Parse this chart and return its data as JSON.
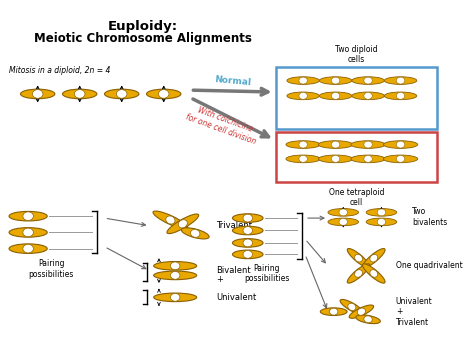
{
  "title_line1": "Euploidy:",
  "title_line2": "Meiotic Chromosome Alignments",
  "bg_color": "#ffffff",
  "chrom_color": "#E8A800",
  "chrom_outline": "#8B6000",
  "blue_box_color": "#5599CC",
  "red_box_color": "#CC4444",
  "normal_text_color": "#55AACC",
  "colchicine_text_color": "#CC3333",
  "mitosis_label": "Mitosis in a diploid, 2n = 4",
  "two_diploid_label": "Two diploid\ncells",
  "one_tetraploid_label": "One tetraploid\ncell",
  "normal_label": "Normal",
  "colchicine_label": "With colchicine\nfor one cell division",
  "pairing_label1": "Pairing\npossibilities",
  "pairing_label2": "Pairing\npossibilities",
  "trivalent_label": "Trivalent",
  "bivalent_label": "Bivalent",
  "univalent_label": "Univalent",
  "two_bivalents_label": "Two\nbivalents",
  "one_quadrivalent_label": "One quadrivalent",
  "univalent_trivalent_label": "Univalent\n+\nTrivalent"
}
